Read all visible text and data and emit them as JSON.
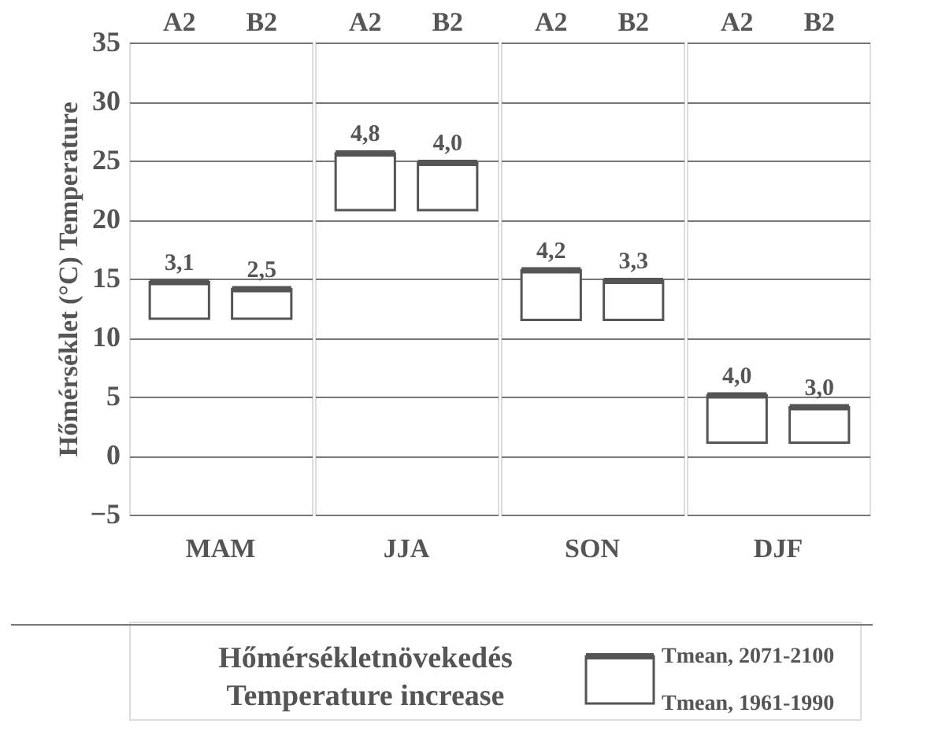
{
  "chart_data": [
    {
      "type": "bar",
      "ylabel": "Hőmérséklet (°C) Temperature",
      "xlabel": "MAM",
      "categories": [
        "A2",
        "B2"
      ],
      "values": [
        3.1,
        2.5
      ],
      "base": [
        11.6,
        11.6
      ],
      "value_labels": [
        "3,1",
        "2,5"
      ],
      "color": "#ffffff",
      "ylim": [
        -5,
        35
      ],
      "yticks": [
        -5,
        0,
        5,
        10,
        15,
        20,
        25,
        30,
        35
      ],
      "grid": "y",
      "legend_title": "Hőmérsékletnövekedés\nTemperature increase",
      "annotations": [
        "Tmean, 2071-2100",
        "Tmean, 1961-1990"
      ]
    },
    {
      "type": "bar",
      "xlabel": "JJA",
      "categories": [
        "A2",
        "B2"
      ],
      "values": [
        4.8,
        4.0
      ],
      "base": [
        20.8,
        20.8
      ],
      "value_labels": [
        "4,8",
        "4,0"
      ],
      "color": "#ffffff",
      "ylim": [
        -5,
        35
      ],
      "yticks": [
        -5,
        0,
        5,
        10,
        15,
        20,
        25,
        30,
        35
      ],
      "grid": "y",
      "tick_labels": "x"
    },
    {
      "type": "bar",
      "xlabel": "SON",
      "categories": [
        "A2",
        "B2"
      ],
      "values": [
        4.2,
        3.3
      ],
      "base": [
        11.5,
        11.5
      ],
      "value_labels": [
        "4,2",
        "3,3"
      ],
      "color": "#ffffff",
      "ylim": [
        -5,
        35
      ],
      "yticks": [
        -5,
        0,
        5,
        10,
        15,
        20,
        25,
        30,
        35
      ],
      "grid": "y",
      "tick_labels": "x"
    },
    {
      "type": "bar",
      "xlabel": "DJF",
      "categories": [
        "A2",
        "B2"
      ],
      "values": [
        4.0,
        3.0
      ],
      "base": [
        1.1,
        1.1
      ],
      "value_labels": [
        "4,0",
        "3,0"
      ],
      "color": "#ffffff",
      "ylim": [
        -5,
        35
      ],
      "yticks": [
        -5,
        0,
        5,
        10,
        15,
        20,
        25,
        30,
        35
      ],
      "grid": "y",
      "tick_labels": "x"
    }
  ]
}
